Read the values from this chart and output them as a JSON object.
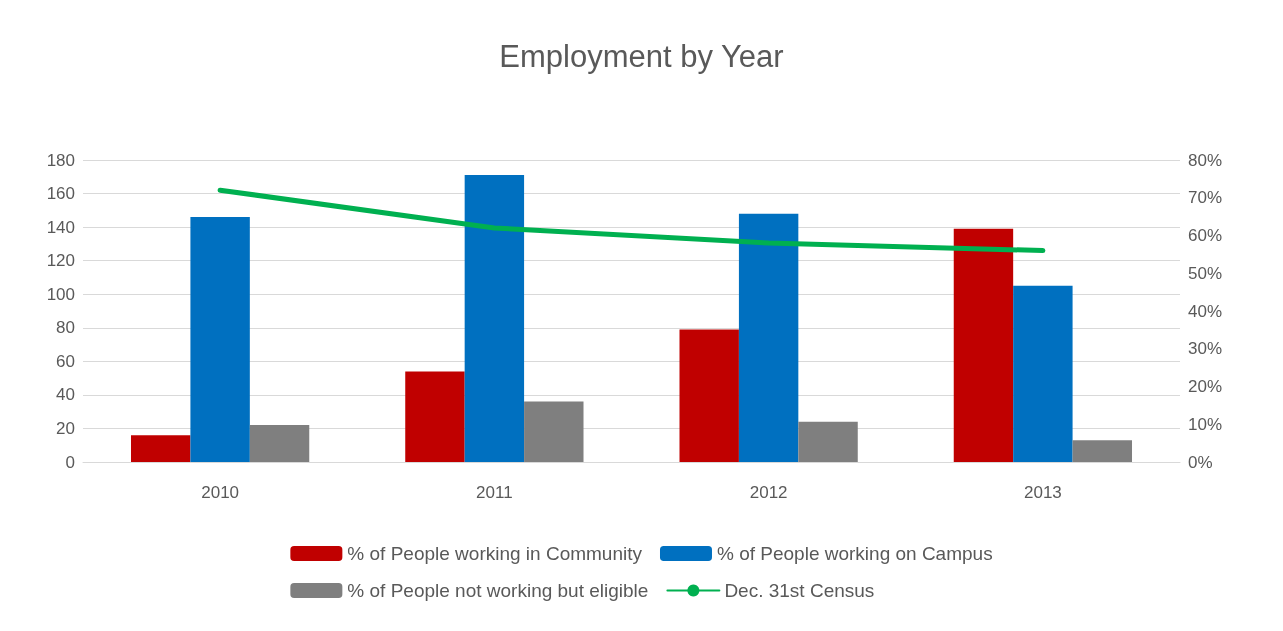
{
  "chart_data": {
    "type": "bar",
    "title": "Employment by Year",
    "categories": [
      "2010",
      "2011",
      "2012",
      "2013"
    ],
    "series": [
      {
        "name": "% of People working in Community",
        "color": "#c00000",
        "values": [
          16,
          54,
          79,
          139
        ]
      },
      {
        "name": "% of People working on Campus",
        "color": "#0070c0",
        "values": [
          146,
          171,
          148,
          105
        ]
      },
      {
        "name": "% of People not working but eligible",
        "color": "#7f7f7f",
        "values": [
          22,
          36,
          24,
          13
        ]
      },
      {
        "name": "Dec. 31st Census",
        "color": "#00b050",
        "type": "line",
        "axis": "y2",
        "values": [
          72,
          62,
          58,
          56
        ]
      }
    ],
    "ylim": [
      0,
      180
    ],
    "yticks": [
      0,
      20,
      40,
      60,
      80,
      100,
      120,
      140,
      160,
      180
    ],
    "y2lim": [
      0,
      80
    ],
    "y2ticks": [
      {
        "value": 0,
        "label": "0%"
      },
      {
        "value": 10,
        "label": "10%"
      },
      {
        "value": 20,
        "label": "20%"
      },
      {
        "value": 30,
        "label": "30%"
      },
      {
        "value": 40,
        "label": "40%"
      },
      {
        "value": 50,
        "label": "50%"
      },
      {
        "value": 60,
        "label": "60%"
      },
      {
        "value": 70,
        "label": "70%"
      },
      {
        "value": 80,
        "label": "80%"
      }
    ],
    "grid": "y",
    "legend": "bottom",
    "marker": "none"
  }
}
